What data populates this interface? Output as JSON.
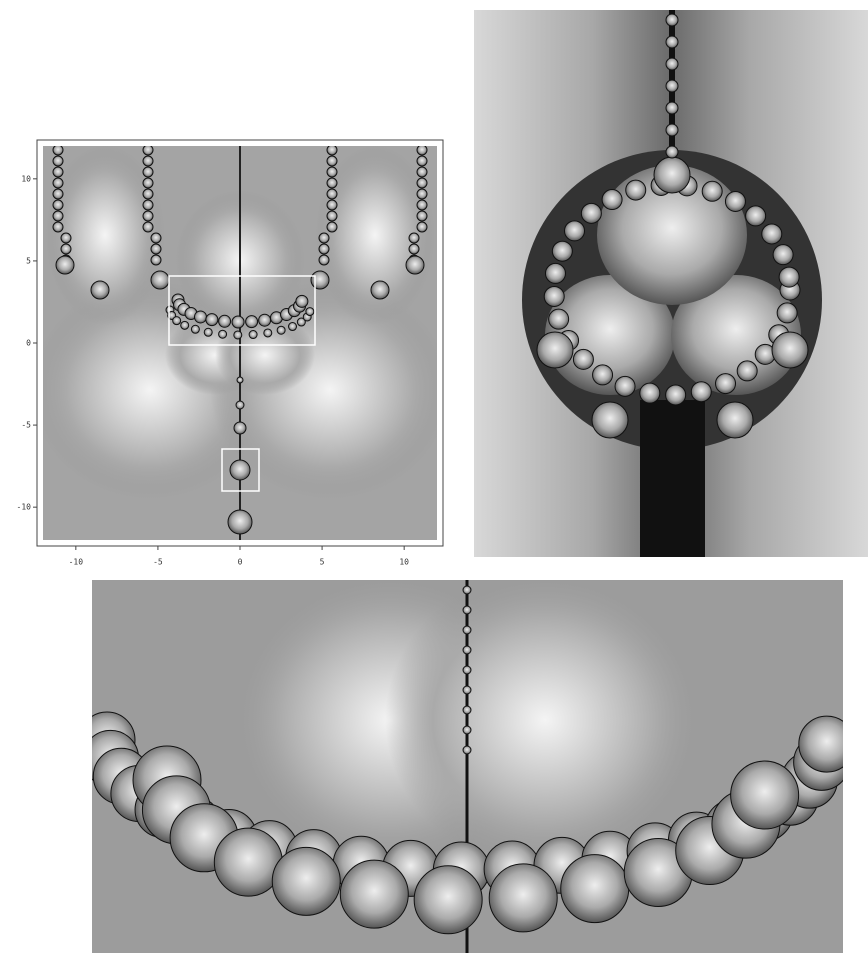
{
  "plot": {
    "xlim": [
      -12,
      12
    ],
    "ylim": [
      -12,
      12
    ],
    "xticks": [
      -10,
      -5,
      0,
      5,
      10
    ],
    "yticks": [
      -10,
      -5,
      0,
      5,
      10
    ]
  }
}
